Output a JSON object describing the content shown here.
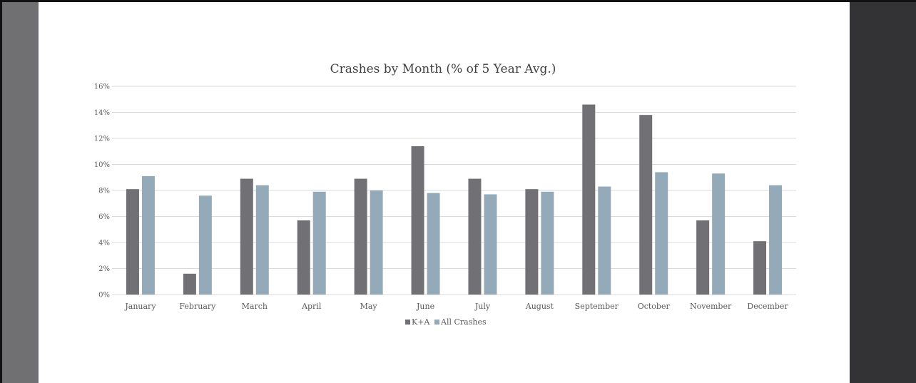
{
  "colors": {
    "ka": "#717074",
    "all": "#95aab8",
    "grid": "#d9d9d9",
    "text": "#595959",
    "title": "#404040"
  },
  "chart_data": {
    "type": "bar",
    "title": "Crashes by Month (% of 5 Year Avg.)",
    "xlabel": "",
    "ylabel": "",
    "ylim": [
      0,
      16
    ],
    "y_ticks": [
      "0%",
      "2%",
      "4%",
      "6%",
      "8%",
      "10%",
      "12%",
      "14%",
      "16%"
    ],
    "grid": "horizontal",
    "legend_position": "bottom",
    "categories": [
      "January",
      "February",
      "March",
      "April",
      "May",
      "June",
      "July",
      "August",
      "September",
      "October",
      "November",
      "December"
    ],
    "series": [
      {
        "name": "K+A",
        "values": [
          8.1,
          1.6,
          8.9,
          5.7,
          8.9,
          11.4,
          8.9,
          8.1,
          14.6,
          13.8,
          5.7,
          4.1
        ]
      },
      {
        "name": "All Crashes",
        "values": [
          9.1,
          7.6,
          8.4,
          7.9,
          8.0,
          7.8,
          7.7,
          7.9,
          8.3,
          9.4,
          9.3,
          8.4
        ]
      }
    ]
  }
}
